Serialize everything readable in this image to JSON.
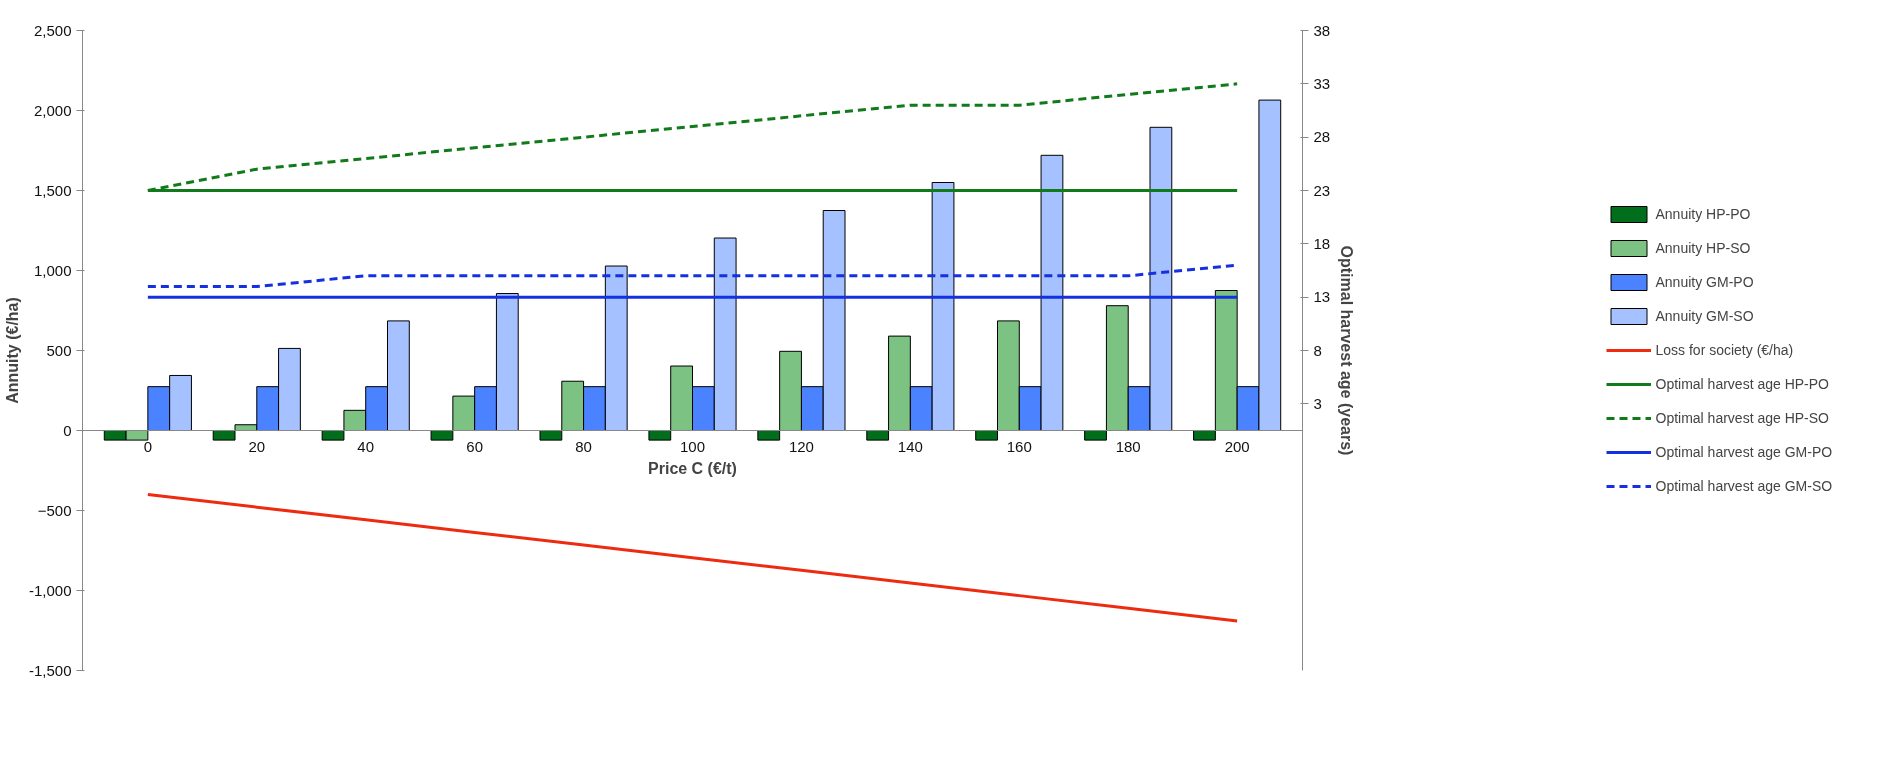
{
  "chart_data": {
    "type": "bar",
    "xlabel": "Price C (€/t)",
    "ylabel": "Annuity (€/ha)",
    "y2label": "Optimal harvest age (years)",
    "categories": [
      "0",
      "20",
      "40",
      "60",
      "80",
      "100",
      "120",
      "140",
      "160",
      "180",
      "200"
    ],
    "ylim": [
      -1500,
      2500
    ],
    "yticks": [
      {
        "value": -1500,
        "label": "-1,500"
      },
      {
        "value": -1000,
        "label": "-1,000"
      },
      -500,
      0,
      500,
      {
        "value": 1000,
        "label": "1,000"
      },
      {
        "value": 1500,
        "label": "1,500"
      },
      {
        "value": 2000,
        "label": "2,000"
      },
      {
        "value": 2500,
        "label": "2,500"
      }
    ],
    "y2lim": [
      -22,
      38
    ],
    "y2ticks": [
      3,
      8,
      13,
      18,
      23,
      28,
      33,
      38
    ],
    "grid": false,
    "legend": "right",
    "series": [
      {
        "name": "Annuity HP-PO",
        "color": "#006e1a",
        "values": [
          -60,
          -60,
          -60,
          -60,
          -60,
          -60,
          -60,
          -60,
          -60,
          -60,
          -60
        ]
      },
      {
        "name": "Annuity HP-SO",
        "color": "#7cc283",
        "values": [
          -60,
          36,
          126,
          215,
          308,
          403,
          495,
          590,
          685,
          780,
          875
        ]
      },
      {
        "name": "Annuity GM-PO",
        "color": "#4a82ff",
        "values": [
          274,
          274,
          274,
          274,
          274,
          274,
          274,
          274,
          274,
          274,
          274
        ]
      },
      {
        "name": "Annuity GM-SO",
        "color": "#a6c1ff",
        "values": [
          344,
          513,
          685,
          856,
          1028,
          1203,
          1375,
          1550,
          1720,
          1895,
          2065
        ]
      },
      {
        "name": "Loss for society (€/ha)",
        "type": "line",
        "color": "#ee2a10",
        "line_style": "solid",
        "values": [
          -400,
          -479,
          -558,
          -637,
          -716,
          -795,
          -874,
          -953,
          -1032,
          -1111,
          -1190
        ]
      },
      {
        "name": "Optimal harvest age HP-PO",
        "type": "line",
        "axis": "y2",
        "color": "#117a1a",
        "line_style": "solid",
        "values": [
          23,
          23,
          23,
          23,
          23,
          23,
          23,
          23,
          23,
          23,
          23
        ]
      },
      {
        "name": "Optimal harvest age HP-SO",
        "type": "line",
        "axis": "y2",
        "color": "#117a1a",
        "line_style": "dashed",
        "values": [
          23,
          25,
          26,
          27,
          28,
          29,
          30,
          31,
          31,
          32,
          33
        ]
      },
      {
        "name": "Optimal harvest age GM-PO",
        "type": "line",
        "axis": "y2",
        "color": "#1530e0",
        "line_style": "solid",
        "values": [
          13,
          13,
          13,
          13,
          13,
          13,
          13,
          13,
          13,
          13,
          13
        ]
      },
      {
        "name": "Optimal harvest age GM-SO",
        "type": "line",
        "axis": "y2",
        "color": "#1530e0",
        "line_style": "dashed",
        "values": [
          14,
          14,
          15,
          15,
          15,
          15,
          15,
          15,
          15,
          15,
          16
        ]
      }
    ]
  }
}
